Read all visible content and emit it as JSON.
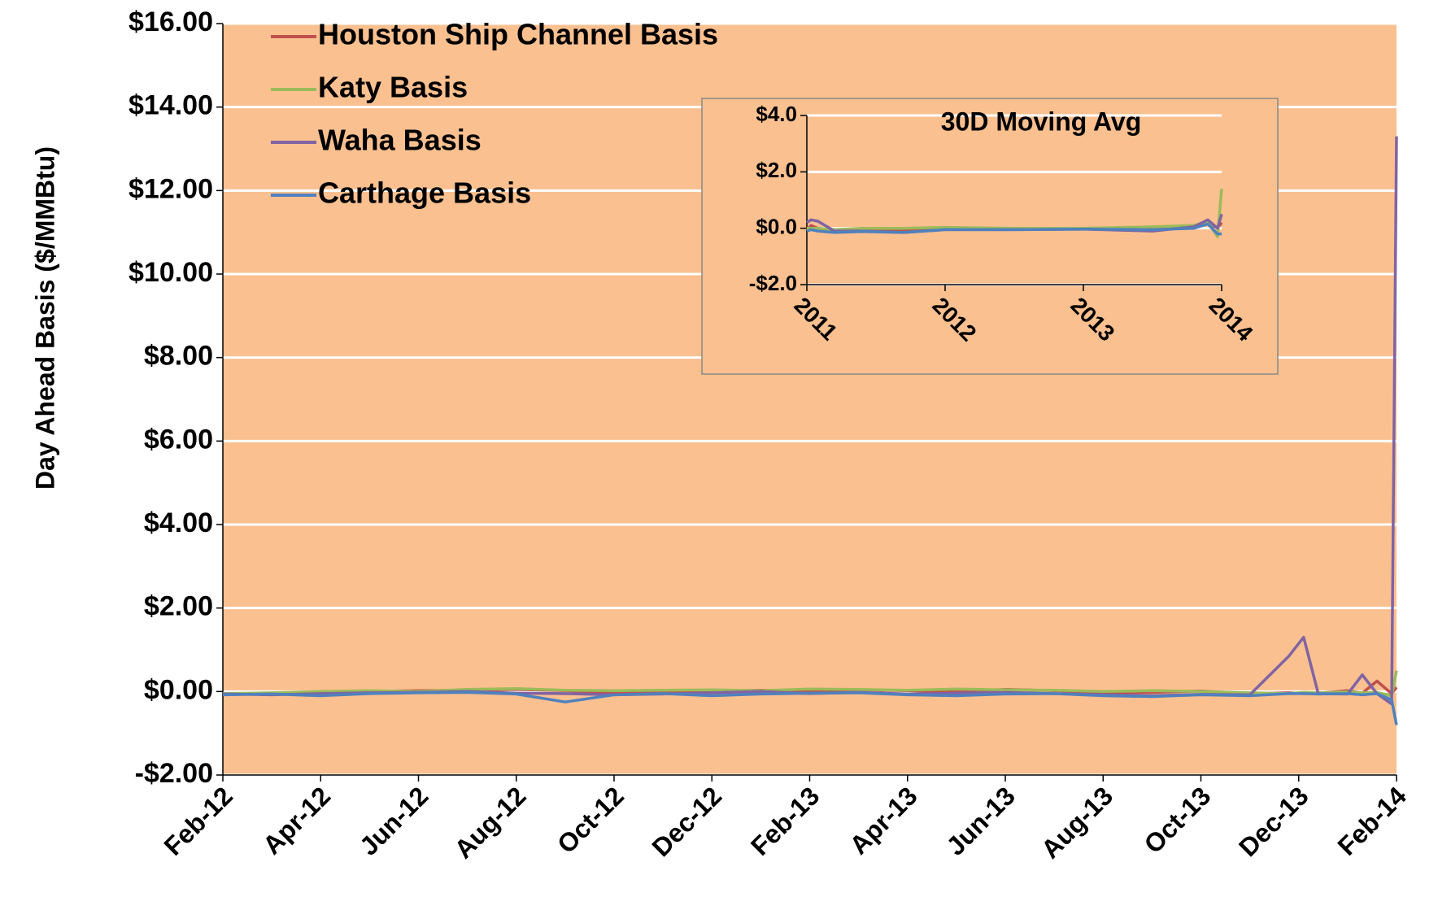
{
  "chart_data": [
    {
      "type": "line",
      "y_label": "Day Ahead Basis ($/MMBtu)",
      "x": [
        0,
        1,
        2,
        3,
        4,
        5,
        6,
        7,
        8,
        9,
        10,
        11,
        12,
        13,
        14,
        15,
        16,
        17,
        18,
        19,
        20,
        21,
        21.8,
        22.1,
        22.4,
        23,
        23.3,
        23.6,
        23.9,
        24
      ],
      "xlim": [
        0,
        24
      ],
      "xticks": [
        {
          "value": 0,
          "label": "Feb-12"
        },
        {
          "value": 2,
          "label": "Apr-12"
        },
        {
          "value": 4,
          "label": "Jun-12"
        },
        {
          "value": 6,
          "label": "Aug-12"
        },
        {
          "value": 8,
          "label": "Oct-12"
        },
        {
          "value": 10,
          "label": "Dec-12"
        },
        {
          "value": 12,
          "label": "Feb-13"
        },
        {
          "value": 14,
          "label": "Apr-13"
        },
        {
          "value": 16,
          "label": "Jun-13"
        },
        {
          "value": 18,
          "label": "Aug-13"
        },
        {
          "value": 20,
          "label": "Oct-13"
        },
        {
          "value": 22,
          "label": "Dec-13"
        },
        {
          "value": 24,
          "label": "Feb-14"
        }
      ],
      "ylim": [
        -2,
        16
      ],
      "yticks": [
        {
          "value": -2,
          "label": "-$2.00"
        },
        {
          "value": 0,
          "label": "$0.00"
        },
        {
          "value": 2,
          "label": "$2.00"
        },
        {
          "value": 4,
          "label": "$4.00"
        },
        {
          "value": 6,
          "label": "$6.00"
        },
        {
          "value": 8,
          "label": "$8.00"
        },
        {
          "value": 10,
          "label": "$10.00"
        },
        {
          "value": 12,
          "label": "$12.00"
        },
        {
          "value": 14,
          "label": "$14.00"
        },
        {
          "value": 16,
          "label": "$16.00"
        }
      ],
      "grid": true,
      "legend": "upper left",
      "series": [
        {
          "name": "Houston Ship Channel Basis",
          "color": "#c0504d",
          "values": [
            -0.08,
            -0.05,
            -0.03,
            0,
            0.02,
            0.03,
            0.05,
            0.02,
            -0.04,
            -0.02,
            0.01,
            0.03,
            0,
            0.04,
            0.02,
            -0.01,
            0.05,
            0.02,
            -0.03,
            -0.02,
            0.01,
            -0.05,
            -0.03,
            -0.05,
            -0.04,
            0.02,
            -0.04,
            0.25,
            -0.05,
            0.1
          ]
        },
        {
          "name": "Katy Basis",
          "color": "#9bbb59",
          "values": [
            -0.05,
            -0.03,
            0,
            0.02,
            0,
            0.05,
            0.07,
            0.03,
            0.02,
            0.03,
            0.04,
            0.02,
            0.06,
            0.05,
            0.03,
            0.06,
            0.04,
            0.03,
            0,
            0.02,
            0,
            -0.03,
            -0.05,
            -0.02,
            -0.03,
            -0.01,
            -0.03,
            -0.02,
            -0.1,
            0.5
          ]
        },
        {
          "name": "Waha Basis",
          "color": "#8064a2",
          "values": [
            -0.06,
            -0.08,
            -0.05,
            -0.03,
            -0.02,
            0,
            -0.04,
            -0.05,
            -0.08,
            -0.06,
            -0.03,
            0,
            -0.05,
            -0.02,
            -0.06,
            -0.04,
            -0.02,
            -0.05,
            -0.08,
            -0.1,
            -0.07,
            -0.08,
            0.85,
            1.3,
            -0.05,
            -0.06,
            0.4,
            -0.05,
            -0.3,
            13.3
          ]
        },
        {
          "name": "Carthage Basis",
          "color": "#4f81bd",
          "values": [
            -0.08,
            -0.06,
            -0.1,
            -0.05,
            -0.03,
            -0.02,
            -0.06,
            -0.25,
            -0.08,
            -0.05,
            -0.1,
            -0.06,
            -0.04,
            -0.03,
            -0.08,
            -0.1,
            -0.06,
            -0.05,
            -0.1,
            -0.12,
            -0.08,
            -0.1,
            -0.05,
            -0.05,
            -0.06,
            -0.05,
            -0.08,
            -0.05,
            -0.2,
            -0.8
          ]
        }
      ]
    },
    {
      "type": "line",
      "title": "30D Moving Avg",
      "x": [
        2011,
        2011.03,
        2011.08,
        2011.2,
        2011.4,
        2011.7,
        2012,
        2012.5,
        2013,
        2013.5,
        2013.8,
        2013.9,
        2013.97,
        2014
      ],
      "xlim": [
        2011,
        2014
      ],
      "xticks": [
        2011,
        2012,
        2013,
        2014
      ],
      "ylim": [
        -2,
        4
      ],
      "yticks": [
        {
          "value": -2,
          "label": "-$2.0"
        },
        {
          "value": 0,
          "label": "$0.0"
        },
        {
          "value": 2,
          "label": "$2.0"
        },
        {
          "value": 4,
          "label": "$4.0"
        }
      ],
      "grid": true,
      "series": [
        {
          "color": "#c0504d",
          "values": [
            -0.05,
            0.1,
            0,
            -0.1,
            -0.05,
            -0.08,
            0,
            -0.02,
            0,
            0,
            0.1,
            0.2,
            0,
            0.2
          ]
        },
        {
          "color": "#9bbb59",
          "values": [
            0,
            0,
            0,
            -0.05,
            0,
            0,
            0.03,
            0,
            0,
            0.05,
            0.1,
            0.25,
            -0.3,
            1.4
          ]
        },
        {
          "color": "#8064a2",
          "values": [
            0.2,
            0.3,
            0.25,
            -0.1,
            -0.1,
            -0.15,
            -0.05,
            -0.05,
            -0.03,
            -0.1,
            0.05,
            0.3,
            0,
            0.5
          ]
        },
        {
          "color": "#4f81bd",
          "values": [
            -0.1,
            -0.05,
            -0.1,
            -0.15,
            -0.12,
            -0.15,
            -0.05,
            -0.05,
            -0.03,
            -0.05,
            0,
            0.15,
            -0.2,
            -0.2
          ]
        }
      ]
    }
  ]
}
